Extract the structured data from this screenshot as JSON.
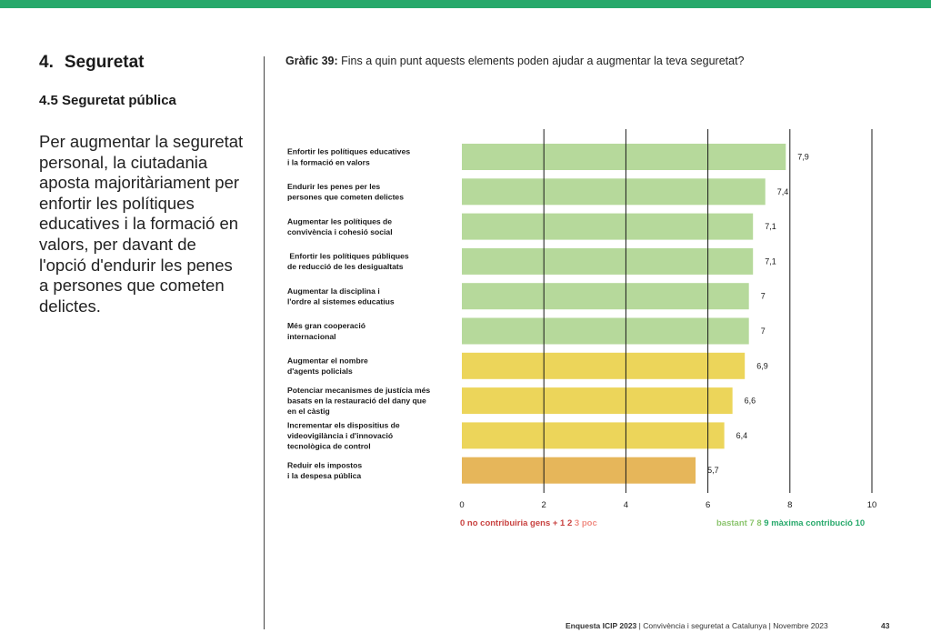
{
  "section": {
    "number": "4.",
    "title": "Seguretat"
  },
  "subsection": {
    "number": "4.5",
    "title": "Seguretat pública"
  },
  "lead_text": "Per augmentar la seguretat personal, la ciutadania aposta majoritàriament per enfortir les polítiques educatives i la formació en valors, per davant de l'opció d'endurir les penes a persones que cometen delictes.",
  "chart_heading": {
    "label": "Gràfic 39:",
    "text": " Fins a quin punt aquests elements poden ajudar a augmentar la teva seguretat?"
  },
  "chart_data": {
    "type": "bar",
    "orientation": "horizontal",
    "categories": [
      [
        "Enfortir les polítiques educatives",
        "i la formació en valors"
      ],
      [
        "Endurir les penes per les",
        "persones que cometen delictes"
      ],
      [
        "Augmentar les polítiques de",
        "convivència i cohesió social"
      ],
      [
        " Enfortir les polítiques públiques",
        "de reducció de les desigualtats"
      ],
      [
        "Augmentar la disciplina i",
        "l'ordre al sistemes educatius"
      ],
      [
        "Més gran cooperació",
        "internacional"
      ],
      [
        "Augmentar el nombre",
        "d'agents policials"
      ],
      [
        "Potenciar mecanismes de justícia més",
        "basats en la restauració del dany que",
        "en el càstig"
      ],
      [
        "Incrementar els dispositius de",
        "videovigilància i d'innovació",
        "tecnològica de control"
      ],
      [
        "Reduir els impostos",
        "i la despesa pública"
      ]
    ],
    "values": [
      7.9,
      7.4,
      7.1,
      7.1,
      7.0,
      7.0,
      6.9,
      6.6,
      6.4,
      5.7
    ],
    "value_labels": [
      "7,9",
      "7,4",
      "7,1",
      "7,1",
      "7",
      "7",
      "6,9",
      "6,6",
      "6,4",
      "5,7"
    ],
    "bar_colors": [
      "#b6d99b",
      "#b6d99b",
      "#b6d99b",
      "#b6d99b",
      "#b6d99b",
      "#b6d99b",
      "#ecd55a",
      "#ecd55a",
      "#ecd55a",
      "#e6b65a"
    ],
    "xlim": [
      0,
      10
    ],
    "xticks": [
      0,
      2,
      4,
      6,
      8,
      10
    ],
    "grid": "vertical",
    "scale_legend_left": [
      {
        "text": "0 no contribuiria gens + 1 2 ",
        "color": "#c8413f"
      },
      {
        "text": "3 poc",
        "color": "#f08d84"
      }
    ],
    "scale_legend_right": [
      {
        "text": "bastant 7 8 ",
        "color": "#8cc56e"
      },
      {
        "text": "9 màxima contribució 10",
        "color": "#27a96b"
      }
    ]
  },
  "footer": {
    "bold": "Enquesta ICIP 2023",
    "rest": " | Convivència i seguretat a Catalunya | Novembre 2023"
  },
  "page_number": "43",
  "colors": {
    "accent": "#27a96b",
    "grid": "#1a1a1a"
  }
}
